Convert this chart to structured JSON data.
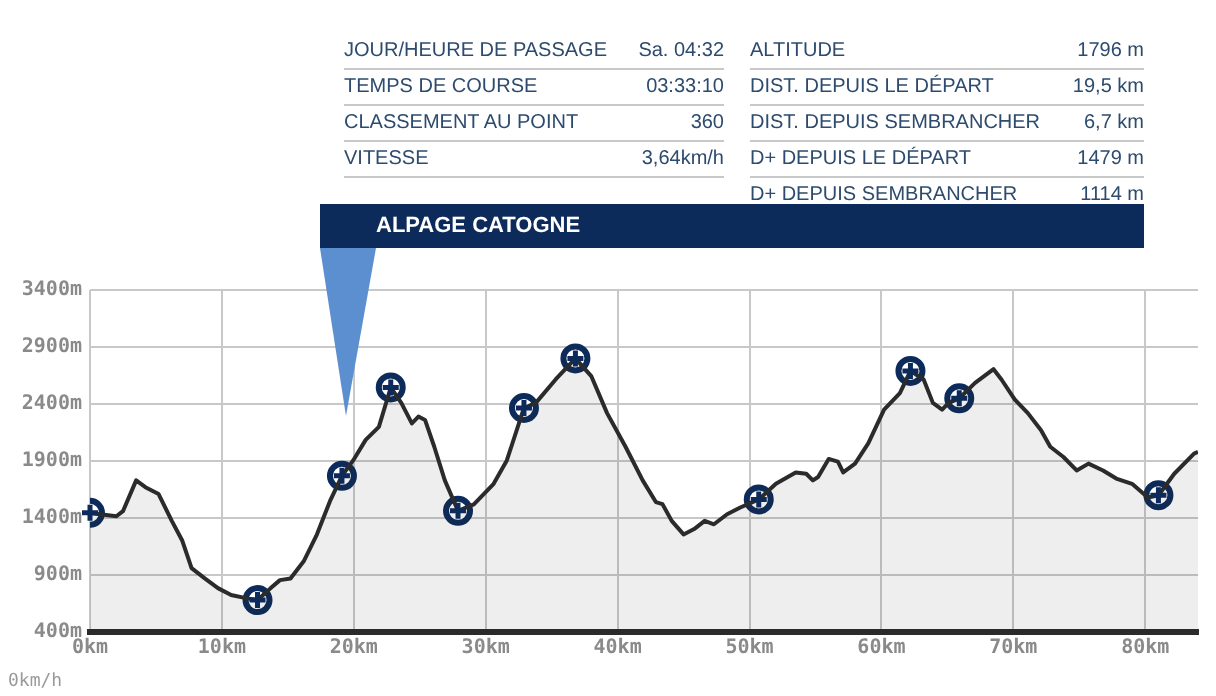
{
  "chart_data": {
    "type": "area",
    "xlim": [
      0,
      84
    ],
    "ylim": [
      400,
      3400
    ],
    "xticks": [
      {
        "value": 0,
        "label": "0km"
      },
      {
        "value": 10,
        "label": "10km"
      },
      {
        "value": 20,
        "label": "20km"
      },
      {
        "value": 30,
        "label": "30km"
      },
      {
        "value": 40,
        "label": "40km"
      },
      {
        "value": 50,
        "label": "50km"
      },
      {
        "value": 60,
        "label": "60km"
      },
      {
        "value": 70,
        "label": "70km"
      },
      {
        "value": 80,
        "label": "80km"
      }
    ],
    "yticks": [
      {
        "value": 400,
        "label": "400m"
      },
      {
        "value": 900,
        "label": "900m"
      },
      {
        "value": 1400,
        "label": "1400m"
      },
      {
        "value": 1900,
        "label": "1900m"
      },
      {
        "value": 2400,
        "label": "2400m"
      },
      {
        "value": 2900,
        "label": "2900m"
      },
      {
        "value": 3400,
        "label": "3400m"
      }
    ],
    "grid": true,
    "legend": false,
    "series": [
      {
        "type": "area",
        "color": "#2b2b2b",
        "x": [
          0,
          0.75,
          2,
          2.5,
          3.5,
          4.2,
          5.2,
          6.2,
          7,
          7.7,
          8.7,
          9.7,
          10.7,
          11.9,
          12.7,
          13.7,
          14.4,
          15.2,
          16.2,
          17.2,
          18.2,
          19.1,
          19.95,
          20.9,
          21.9,
          22.8,
          23.6,
          24.4,
          24.9,
          25.4,
          26.1,
          26.9,
          27.9,
          29.1,
          30.6,
          31.6,
          32.9,
          33.8,
          35.3,
          36.8,
          38,
          39.2,
          40.6,
          41.9,
          42.9,
          43.4,
          44.1,
          45,
          45.8,
          46.6,
          47.3,
          48.3,
          49.3,
          50.7,
          52,
          53.5,
          54.3,
          54.8,
          55.2,
          56,
          56.7,
          57.1,
          58,
          59,
          60.2,
          61.4,
          62.2,
          63.2,
          63.9,
          64.6,
          65.1,
          65.9,
          67.1,
          68.5,
          69.1,
          70.1,
          71.1,
          72.1,
          72.8,
          73.8,
          74.8,
          75.7,
          76.8,
          77.8,
          79,
          80.2,
          81,
          82.2,
          83.7,
          84
        ],
        "values": [
          1445,
          1433,
          1415,
          1460,
          1730,
          1670,
          1610,
          1375,
          1200,
          960,
          870,
          785,
          725,
          695,
          680,
          785,
          855,
          870,
          1020,
          1255,
          1550,
          1770,
          1905,
          2085,
          2200,
          2545,
          2410,
          2230,
          2290,
          2260,
          2025,
          1730,
          1463,
          1520,
          1700,
          1905,
          2365,
          2410,
          2615,
          2800,
          2645,
          2320,
          2025,
          1730,
          1540,
          1522,
          1375,
          1256,
          1303,
          1375,
          1345,
          1433,
          1492,
          1563,
          1700,
          1800,
          1788,
          1730,
          1760,
          1918,
          1894,
          1800,
          1877,
          2055,
          2350,
          2495,
          2690,
          2615,
          2410,
          2350,
          2410,
          2450,
          2585,
          2705,
          2615,
          2440,
          2320,
          2170,
          2025,
          1935,
          1817,
          1877,
          1817,
          1746,
          1700,
          1580,
          1600,
          1788,
          1965,
          1980
        ]
      },
      {
        "type": "scatter",
        "color": "#0d2b5a",
        "marker": "circle",
        "x": [
          0,
          12.7,
          19.1,
          22.8,
          27.9,
          32.9,
          36.8,
          50.7,
          62.2,
          65.9,
          81
        ],
        "values": [
          1445,
          680,
          1770,
          2545,
          1463,
          2365,
          2800,
          1563,
          2690,
          2450,
          1600
        ]
      }
    ],
    "annotations": [
      "JOUR/HEURE DE PASSAGE",
      "Sa. 04:32",
      "TEMPS DE COURSE",
      "03:33:10",
      "CLASSEMENT AU POINT",
      "360",
      "VITESSE",
      "3,64km/h",
      "ALTITUDE",
      "1796 m",
      "DIST. DEPUIS LE DÉPART",
      "19,5 km",
      "DIST. DEPUIS SEMBRANCHER",
      "6,7 km",
      "D+ DEPUIS LE DÉPART",
      "1479 m",
      "D+ DEPUIS SEMBRANCHER",
      "1114 m",
      "ALPAGE CATOGNE",
      "0km/h"
    ]
  }
}
